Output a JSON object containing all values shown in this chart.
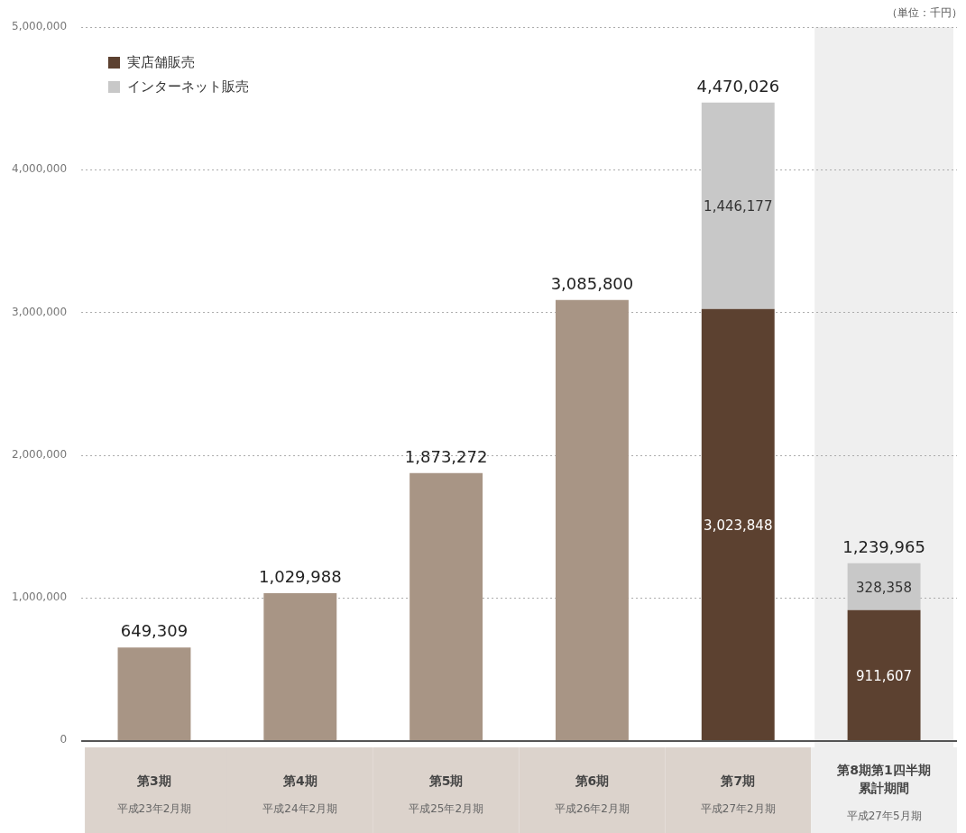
{
  "chart_data": {
    "type": "bar",
    "stacked": true,
    "categories": [
      "第3期",
      "第4期",
      "第5期",
      "第6期",
      "第7期",
      "第8期第1四半期累計期間"
    ],
    "series": [
      {
        "color": "#a89585",
        "values": [
          649309,
          1029988,
          1873272,
          3085800,
          null,
          null
        ]
      },
      {
        "name": "実店舗販売",
        "color": "#5c4130",
        "values": [
          null,
          null,
          null,
          null,
          3023848,
          911607
        ],
        "value_labels": [
          null,
          null,
          null,
          null,
          "3,023,848",
          "911,607"
        ]
      },
      {
        "name": "インターネット販売",
        "color": "#c8c8c8",
        "values": [
          null,
          null,
          null,
          null,
          1446177,
          328358
        ],
        "value_labels": [
          null,
          null,
          null,
          null,
          "1,446,177",
          "328,358"
        ]
      }
    ],
    "totals": [
      "649,309",
      "1,029,988",
      "1,873,272",
      "3,085,800",
      "4,470,026",
      "1,239,965"
    ],
    "ylim": [
      0,
      5000000
    ],
    "yticks": [
      {
        "value": 0,
        "label": "0"
      },
      {
        "value": 1000000,
        "label": "1,000,000"
      },
      {
        "value": 2000000,
        "label": "2,000,000"
      },
      {
        "value": 3000000,
        "label": "3,000,000"
      },
      {
        "value": 4000000,
        "label": "4,000,000"
      },
      {
        "value": 5000000,
        "label": "5,000,000"
      }
    ],
    "bands": [
      {
        "axis": "x",
        "from": "第8期第1四半期累計期間",
        "to": "第8期第1四半期累計期間",
        "color": "#efefef"
      }
    ],
    "grid": "y",
    "legend": "top left",
    "annotations": [
      "（単位：千円）",
      "平成23年2月期",
      "平成24年2月期",
      "平成25年2月期",
      "平成26年2月期",
      "平成27年2月期",
      "平成27年5月期"
    ]
  }
}
